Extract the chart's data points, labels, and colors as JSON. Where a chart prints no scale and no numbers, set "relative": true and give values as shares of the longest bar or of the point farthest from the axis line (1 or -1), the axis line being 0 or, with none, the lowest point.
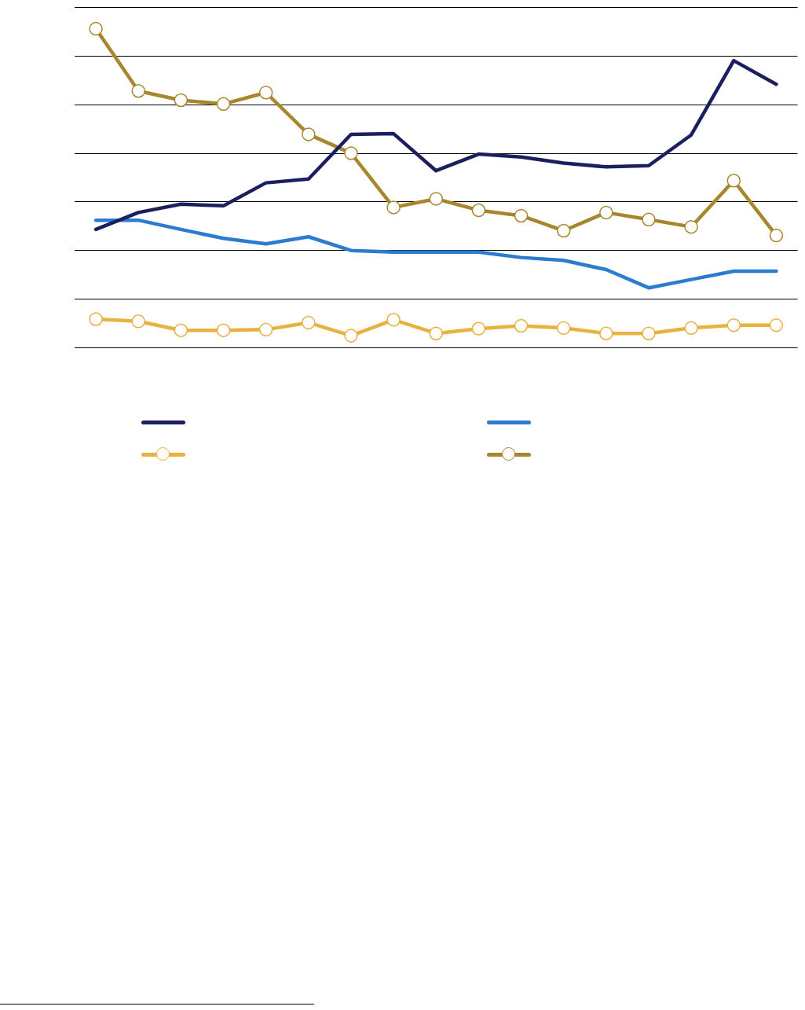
{
  "chart_data": {
    "type": "line",
    "relative": true,
    "grid": "y",
    "categories": [
      null,
      null,
      null,
      null,
      null,
      null,
      null,
      null,
      null,
      null,
      null,
      null,
      null,
      null,
      null,
      null,
      null
    ],
    "series": [
      {
        "color": "#1c1f5e",
        "marker": "none",
        "values": [
          0.371,
          0.424,
          0.45,
          0.445,
          0.517,
          0.529,
          0.669,
          0.671,
          0.555,
          0.607,
          0.598,
          0.579,
          0.567,
          0.571,
          0.667,
          0.9,
          0.826
        ]
      },
      {
        "color": "#2b7bd0",
        "marker": "none",
        "values": [
          0.4,
          0.4,
          0.371,
          0.343,
          0.326,
          0.348,
          0.305,
          0.3,
          0.3,
          0.3,
          0.283,
          0.274,
          0.245,
          0.188,
          0.214,
          0.24,
          0.24
        ]
      },
      {
        "color": "#e8b140",
        "marker": "circle",
        "values": [
          0.09,
          0.083,
          0.055,
          0.055,
          0.057,
          0.079,
          0.038,
          0.088,
          0.045,
          0.06,
          0.069,
          0.062,
          0.045,
          0.045,
          0.062,
          0.071,
          0.071
        ]
      },
      {
        "color": "#a8862e",
        "marker": "circle",
        "values": [
          1,
          0.805,
          0.776,
          0.764,
          0.8,
          0.669,
          0.61,
          0.44,
          0.467,
          0.431,
          0.414,
          0.367,
          0.424,
          0.402,
          0.379,
          0.524,
          0.352
        ]
      }
    ]
  }
}
